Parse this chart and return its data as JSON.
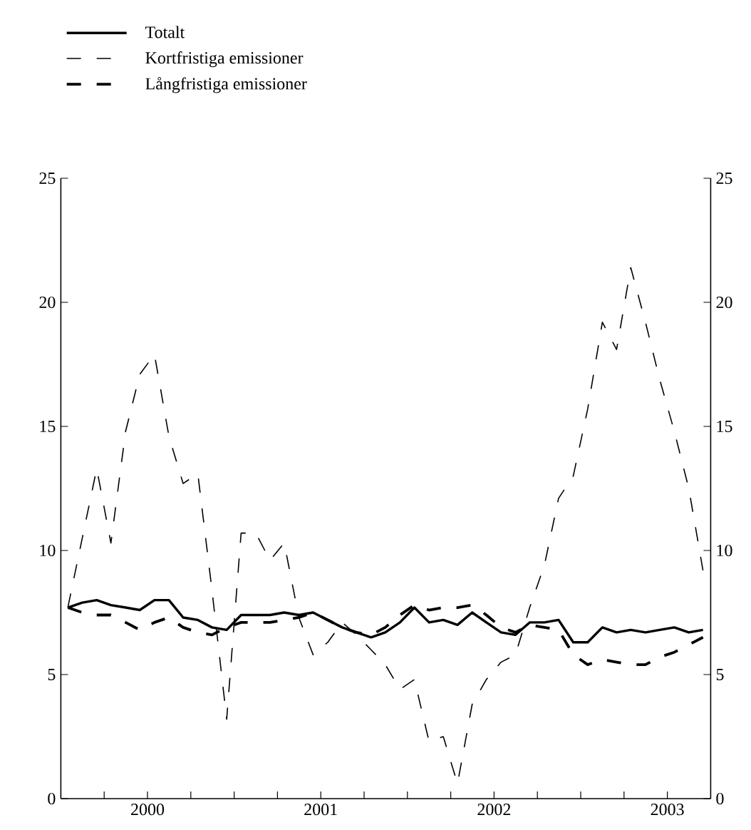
{
  "chart_data": {
    "type": "line",
    "x": [
      "2000-01-16",
      "2000-02-15",
      "2000-03-16",
      "2000-04-15",
      "2000-05-16",
      "2000-06-15",
      "2000-07-16",
      "2000-08-16",
      "2000-09-15",
      "2000-10-16",
      "2000-11-15",
      "2000-12-16",
      "2001-01-16",
      "2001-02-15",
      "2001-03-16",
      "2001-04-15",
      "2001-05-16",
      "2001-06-15",
      "2001-07-16",
      "2001-08-16",
      "2001-09-15",
      "2001-10-16",
      "2001-11-15",
      "2001-12-16",
      "2002-01-16",
      "2002-02-15",
      "2002-03-16",
      "2002-04-15",
      "2002-05-16",
      "2002-06-15",
      "2002-07-16",
      "2002-08-16",
      "2002-09-15",
      "2002-10-16",
      "2002-11-15",
      "2002-12-16",
      "2003-01-16",
      "2003-02-15",
      "2003-03-16",
      "2003-04-15",
      "2003-05-16",
      "2003-06-15",
      "2003-07-16",
      "2003-08-16",
      "2003-09-15"
    ],
    "series": [
      {
        "name": "Totalt",
        "color": "#000000",
        "line_style": "solid",
        "values": [
          7.7,
          7.9,
          8.0,
          7.8,
          7.7,
          7.6,
          8.0,
          8.0,
          7.3,
          7.2,
          6.9,
          6.8,
          7.4,
          7.4,
          7.4,
          7.5,
          7.4,
          7.5,
          7.2,
          6.9,
          6.7,
          6.5,
          6.7,
          7.1,
          7.7,
          7.1,
          7.2,
          7.0,
          7.5,
          7.1,
          6.7,
          6.6,
          7.1,
          7.1,
          7.2,
          6.3,
          6.3,
          6.9,
          6.7,
          6.8,
          6.7,
          6.8,
          6.9,
          6.7,
          6.8
        ]
      },
      {
        "name": "Kortfristiga emissioner",
        "color": "#000000",
        "line_style": "dashed",
        "values": [
          7.7,
          10.5,
          13.3,
          10.3,
          14.8,
          17.1,
          17.9,
          14.6,
          12.7,
          13.1,
          8.4,
          3.2,
          10.7,
          10.7,
          9.6,
          10.3,
          7.3,
          5.8,
          6.3,
          7.1,
          6.6,
          6.0,
          5.4,
          4.4,
          4.8,
          2.3,
          2.5,
          0.6,
          3.8,
          4.8,
          5.5,
          5.8,
          7.7,
          9.4,
          12.1,
          13.0,
          15.7,
          19.2,
          18.1,
          21.4,
          19.2,
          16.9,
          14.8,
          12.5,
          9.2
        ]
      },
      {
        "name": "Långfristiga emissioner",
        "color": "#000000",
        "line_style": "dashed",
        "values": [
          7.7,
          7.5,
          7.4,
          7.4,
          7.1,
          6.8,
          7.1,
          7.3,
          6.9,
          6.7,
          6.6,
          6.9,
          7.1,
          7.1,
          7.1,
          7.2,
          7.3,
          7.5,
          7.2,
          6.9,
          6.7,
          6.6,
          6.9,
          7.4,
          7.8,
          7.6,
          7.7,
          7.7,
          7.8,
          7.4,
          6.9,
          6.7,
          7.0,
          6.9,
          6.8,
          5.8,
          5.4,
          5.6,
          5.5,
          5.4,
          5.4,
          5.7,
          5.9,
          6.2,
          6.5
        ]
      }
    ],
    "xlim": [
      "2000-01-01",
      "2003-10-01"
    ],
    "xticks": [
      {
        "value": "2000-04-01",
        "label": null
      },
      {
        "value": "2000-07-01",
        "label": "2000"
      },
      {
        "value": "2000-10-01",
        "label": null
      },
      {
        "value": "2001-01-01",
        "label": null
      },
      {
        "value": "2001-04-01",
        "label": null
      },
      {
        "value": "2001-07-01",
        "label": "2001"
      },
      {
        "value": "2001-10-01",
        "label": null
      },
      {
        "value": "2002-01-01",
        "label": null
      },
      {
        "value": "2002-04-01",
        "label": null
      },
      {
        "value": "2002-07-01",
        "label": "2002"
      },
      {
        "value": "2002-10-01",
        "label": null
      },
      {
        "value": "2003-01-01",
        "label": null
      },
      {
        "value": "2003-04-01",
        "label": null
      },
      {
        "value": "2003-07-01",
        "label": "2003"
      }
    ],
    "ylim": [
      0,
      25
    ],
    "yticks": [
      0,
      5,
      10,
      15,
      20,
      25
    ],
    "y2lim": [
      0,
      25
    ],
    "y2ticks": [
      0,
      5,
      10,
      15,
      20,
      25
    ],
    "legend": "top left"
  }
}
